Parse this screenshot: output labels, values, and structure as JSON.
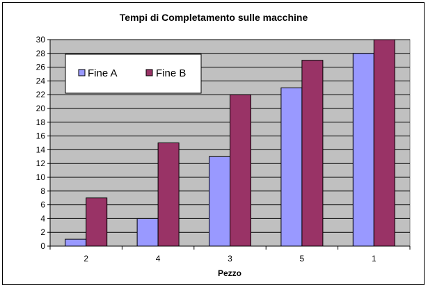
{
  "chart_data": {
    "type": "bar",
    "title": "Tempi di Completamento sulle macchine",
    "xlabel": "Pezzo",
    "ylabel": "",
    "categories": [
      "2",
      "4",
      "3",
      "5",
      "1"
    ],
    "series": [
      {
        "name": "Fine A",
        "values": [
          1,
          4,
          13,
          23,
          28
        ],
        "color": "#9999ff"
      },
      {
        "name": "Fine B",
        "values": [
          7,
          15,
          22,
          27,
          30
        ],
        "color": "#993366"
      }
    ],
    "ylim": [
      0,
      30
    ],
    "yticks": [
      0,
      2,
      4,
      6,
      8,
      10,
      12,
      14,
      16,
      18,
      20,
      22,
      24,
      26,
      28,
      30
    ],
    "grid": true,
    "legend_position": "top-left",
    "plot_background": "#c0c0c0"
  }
}
